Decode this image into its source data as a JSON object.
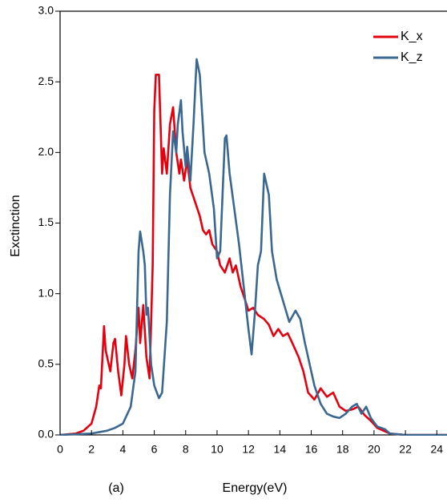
{
  "chart_data": {
    "type": "line",
    "xlabel": "Energy(eV)",
    "ylabel": "Exctinction",
    "annotation": "(a)",
    "xlim": [
      0,
      24.7
    ],
    "ylim": [
      0,
      3
    ],
    "xticks": [
      0,
      2,
      4,
      6,
      8,
      10,
      12,
      14,
      16,
      18,
      20,
      22,
      24
    ],
    "yticks": [
      {
        "value": 0,
        "label": "0.0"
      },
      {
        "value": 0.5,
        "label": "0.5"
      },
      {
        "value": 1,
        "label": "1.0"
      },
      {
        "value": 1.5,
        "label": "1.5"
      },
      {
        "value": 2,
        "label": "2.0"
      },
      {
        "value": 2.5,
        "label": "2.5"
      },
      {
        "value": 3,
        "label": "3.0"
      }
    ],
    "legend": "upper right",
    "series": [
      {
        "name": "K_x",
        "color": "#e3000f",
        "x": [
          0,
          1,
          1.5,
          2,
          2.3,
          2.5,
          2.6,
          2.8,
          2.9,
          3.0,
          3.2,
          3.4,
          3.5,
          3.7,
          3.9,
          4.1,
          4.2,
          4.4,
          4.6,
          4.8,
          5.0,
          5.1,
          5.3,
          5.5,
          5.7,
          5.9,
          6.0,
          6.1,
          6.3,
          6.5,
          6.6,
          6.8,
          7.0,
          7.2,
          7.4,
          7.6,
          7.7,
          7.9,
          8.1,
          8.3,
          8.6,
          8.9,
          9.1,
          9.3,
          9.5,
          9.7,
          10,
          10.2,
          10.5,
          10.8,
          11,
          11.2,
          11.5,
          11.8,
          12,
          12.3,
          12.6,
          13,
          13.3,
          13.6,
          13.9,
          14.2,
          14.5,
          14.8,
          15.2,
          15.5,
          15.8,
          16.2,
          16.6,
          17,
          17.4,
          17.8,
          18.2,
          18.6,
          19,
          19.4,
          19.8,
          20.2,
          20.6,
          21,
          22,
          24.7
        ],
        "values": [
          0,
          0.01,
          0.03,
          0.08,
          0.2,
          0.35,
          0.33,
          0.77,
          0.6,
          0.55,
          0.45,
          0.65,
          0.68,
          0.45,
          0.28,
          0.5,
          0.7,
          0.5,
          0.4,
          0.6,
          0.9,
          0.65,
          0.92,
          0.55,
          0.4,
          1.2,
          2.3,
          2.55,
          2.55,
          1.85,
          2.03,
          1.85,
          2.2,
          2.32,
          2.0,
          1.85,
          1.95,
          1.8,
          1.95,
          1.75,
          1.65,
          1.55,
          1.45,
          1.42,
          1.45,
          1.35,
          1.3,
          1.2,
          1.15,
          1.25,
          1.15,
          1.2,
          1.05,
          0.95,
          0.88,
          0.9,
          0.85,
          0.82,
          0.78,
          0.7,
          0.75,
          0.7,
          0.72,
          0.65,
          0.55,
          0.45,
          0.3,
          0.25,
          0.33,
          0.27,
          0.3,
          0.2,
          0.17,
          0.18,
          0.2,
          0.14,
          0.1,
          0.05,
          0.03,
          0.01,
          0,
          0
        ]
      },
      {
        "name": "K_z",
        "color": "#3a6891",
        "x": [
          0,
          2,
          3,
          3.5,
          4,
          4.5,
          4.8,
          5.0,
          5.1,
          5.3,
          5.4,
          5.5,
          5.6,
          5.8,
          6.0,
          6.3,
          6.5,
          6.8,
          7.0,
          7.2,
          7.4,
          7.5,
          7.7,
          7.8,
          8.0,
          8.1,
          8.3,
          8.5,
          8.7,
          8.9,
          9.2,
          9.5,
          9.8,
          10.0,
          10.2,
          10.5,
          10.6,
          10.8,
          11.1,
          11.4,
          11.7,
          12.0,
          12.2,
          12.4,
          12.6,
          12.8,
          13.0,
          13.3,
          13.5,
          13.8,
          14.2,
          14.6,
          15.0,
          15.3,
          15.6,
          15.9,
          16.2,
          16.6,
          17.0,
          17.4,
          17.8,
          18.2,
          18.6,
          18.9,
          19.2,
          19.5,
          19.8,
          20.2,
          20.7,
          21,
          22,
          24.7
        ],
        "values": [
          0,
          0.01,
          0.03,
          0.05,
          0.08,
          0.2,
          0.45,
          1.3,
          1.44,
          1.3,
          1.2,
          0.85,
          0.9,
          0.5,
          0.35,
          0.26,
          0.3,
          0.8,
          1.7,
          2.15,
          2.0,
          2.2,
          2.37,
          2.15,
          1.9,
          2.04,
          1.8,
          2.2,
          2.66,
          2.55,
          2.0,
          1.85,
          1.6,
          1.25,
          1.3,
          2.1,
          2.12,
          1.85,
          1.6,
          1.35,
          1.05,
          0.75,
          0.57,
          0.85,
          1.2,
          1.3,
          1.85,
          1.7,
          1.3,
          1.1,
          0.95,
          0.8,
          0.88,
          0.82,
          0.65,
          0.5,
          0.35,
          0.22,
          0.15,
          0.13,
          0.12,
          0.15,
          0.2,
          0.22,
          0.15,
          0.2,
          0.12,
          0.06,
          0.04,
          0.01,
          0,
          0
        ]
      }
    ]
  }
}
